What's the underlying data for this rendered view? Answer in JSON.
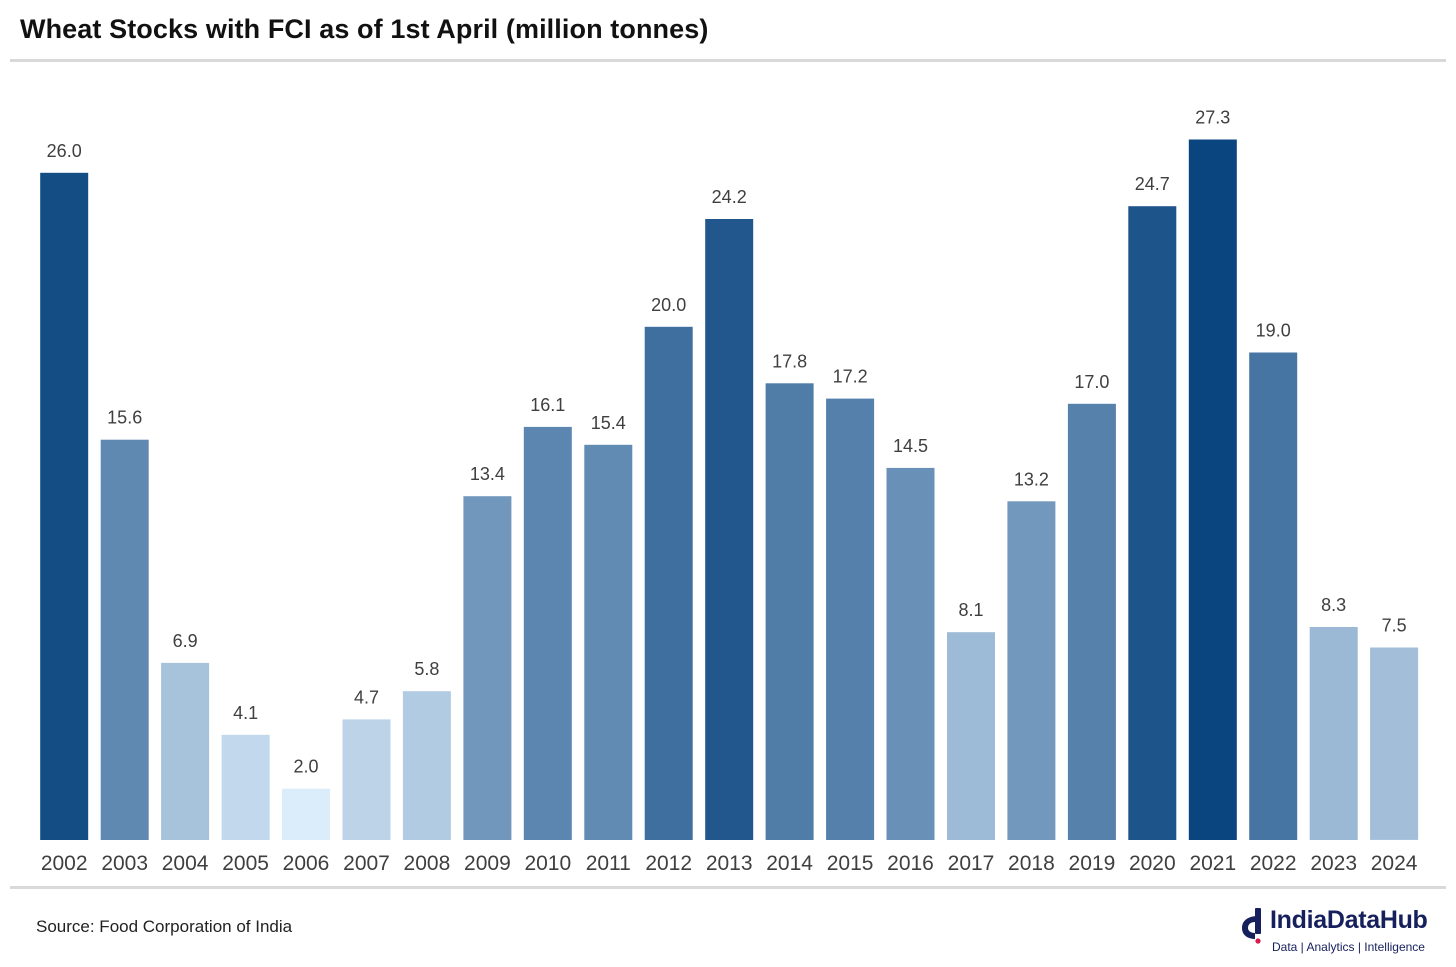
{
  "title": "Wheat Stocks with FCI as of 1st April (million tonnes)",
  "source": "Source: Food Corporation of India",
  "logo": {
    "name": "IndiaDataHub",
    "tagline": "Data | Analytics | Intelligence"
  },
  "colors": {
    "low": "#dbecfb",
    "high": "#0b457f",
    "label": "#3f3f3f",
    "axis_text": "#3f3f3f",
    "brand": "#16205c"
  },
  "chart_data": {
    "type": "bar",
    "title": "Wheat Stocks with FCI as of 1st April (million tonnes)",
    "xlabel": "",
    "ylabel": "",
    "ylim": [
      0,
      28
    ],
    "grid": false,
    "legend": "none",
    "categories": [
      "2002",
      "2003",
      "2004",
      "2005",
      "2006",
      "2007",
      "2008",
      "2009",
      "2010",
      "2011",
      "2012",
      "2013",
      "2014",
      "2015",
      "2016",
      "2017",
      "2018",
      "2019",
      "2020",
      "2021",
      "2022",
      "2023",
      "2024"
    ],
    "values": [
      26.0,
      15.6,
      6.9,
      4.1,
      2.0,
      4.7,
      5.8,
      13.4,
      16.1,
      15.4,
      20.0,
      24.2,
      17.8,
      17.2,
      14.5,
      8.1,
      13.2,
      17.0,
      24.7,
      27.3,
      19.0,
      8.3,
      7.5
    ],
    "labels": [
      "26.0",
      "15.6",
      "6.9",
      "4.1",
      "2.0",
      "4.7",
      "5.8",
      "13.4",
      "16.1",
      "15.4",
      "20.0",
      "24.2",
      "17.8",
      "17.2",
      "14.5",
      "8.1",
      "13.2",
      "17.0",
      "24.7",
      "27.3",
      "19.0",
      "8.3",
      "7.5"
    ]
  }
}
